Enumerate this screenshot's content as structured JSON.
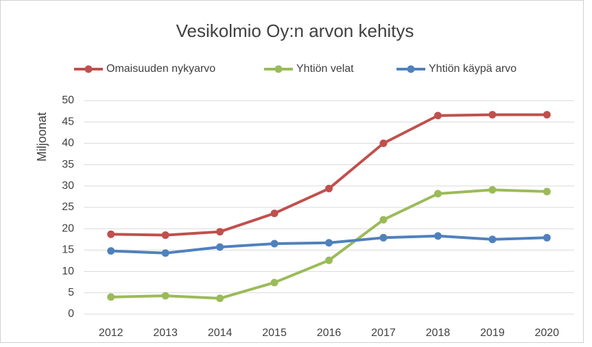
{
  "chart_data": {
    "type": "line",
    "title": "Vesikolmio Oy:n arvon kehitys",
    "ylabel": "Miljoonat",
    "categories": [
      "2012",
      "2013",
      "2014",
      "2015",
      "2016",
      "2017",
      "2018",
      "2019",
      "2020"
    ],
    "series": [
      {
        "name": "Omaisuuden  nykyarvo",
        "color": "#c0504d",
        "values": [
          18.7,
          18.5,
          19.3,
          23.6,
          29.4,
          40,
          46.5,
          46.7,
          46.7
        ]
      },
      {
        "name": "Yhtiön velat",
        "color": "#9bbb59",
        "values": [
          4,
          4.3,
          3.7,
          7.4,
          12.6,
          22.1,
          28.2,
          29.1,
          28.7
        ]
      },
      {
        "name": "Yhtiön käypä arvo",
        "color": "#4f81bd",
        "values": [
          14.8,
          14.3,
          15.7,
          16.5,
          16.7,
          17.9,
          18.3,
          17.5,
          17.9
        ]
      }
    ],
    "ylim": [
      0,
      50
    ],
    "yticks": [
      0,
      5,
      10,
      15,
      20,
      25,
      30,
      35,
      40,
      45,
      50
    ],
    "grid": true,
    "legend": "top"
  }
}
